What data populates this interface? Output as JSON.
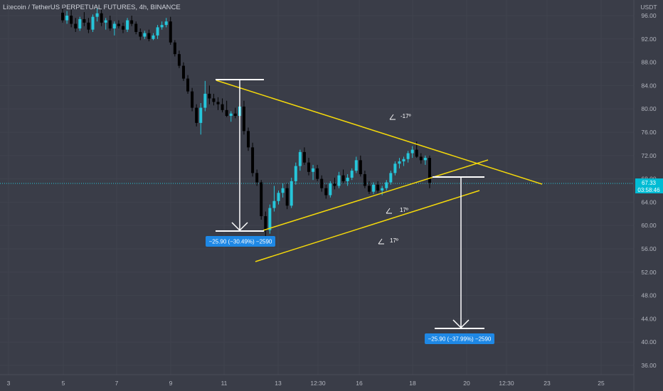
{
  "header": {
    "title": "Litecoin / TetherUS PERPETUAL FUTURES, 4h, BINANCE"
  },
  "price_axis": {
    "unit": "USDT",
    "ticks": [
      "96.00",
      "92.00",
      "88.00",
      "84.00",
      "80.00",
      "76.00",
      "72.00",
      "68.00",
      "64.00",
      "60.00",
      "56.00",
      "52.00",
      "48.00",
      "44.00",
      "40.00",
      "36.00"
    ],
    "current_price": "67.33",
    "countdown": "03:58:46"
  },
  "time_axis": {
    "ticks": [
      "3",
      "5",
      "7",
      "9",
      "11",
      "13",
      "12:30",
      "16",
      "18",
      "20",
      "12:30",
      "23",
      "25"
    ]
  },
  "measurements": [
    {
      "text": "−25.90 (−30.49%) −2590"
    },
    {
      "text": "−25.90 (−37.99%) −2590"
    }
  ],
  "angle_labels": [
    "-17º",
    "17º",
    "17º"
  ],
  "colors": {
    "background": "#3a3d48",
    "up": "#26c6da",
    "down": "#000000",
    "trendline": "#f5d90a",
    "badge": "#1e88e5",
    "price_tag": "#00bcd4",
    "axis_text": "#b2b5be"
  },
  "chart_data": {
    "type": "candlestick",
    "y_range": [
      34,
      98
    ],
    "last_price": 67.33,
    "candles_ohlc": [
      [
        96.5,
        97.2,
        94.8,
        95.2
      ],
      [
        95.2,
        96.8,
        94.6,
        96.0
      ],
      [
        96.0,
        97.0,
        94.0,
        94.6
      ],
      [
        94.6,
        95.6,
        93.2,
        93.8
      ],
      [
        93.8,
        95.8,
        93.4,
        95.4
      ],
      [
        95.4,
        96.6,
        94.2,
        94.8
      ],
      [
        94.8,
        95.6,
        93.0,
        93.6
      ],
      [
        93.6,
        96.2,
        93.2,
        95.8
      ],
      [
        95.8,
        97.2,
        95.0,
        96.4
      ],
      [
        96.4,
        97.0,
        94.2,
        94.8
      ],
      [
        94.8,
        95.6,
        93.6,
        95.2
      ],
      [
        95.2,
        96.0,
        93.4,
        93.8
      ],
      [
        93.8,
        95.0,
        92.6,
        94.6
      ],
      [
        94.6,
        95.2,
        93.8,
        94.2
      ],
      [
        94.2,
        94.8,
        93.0,
        93.6
      ],
      [
        93.6,
        95.6,
        93.2,
        95.2
      ],
      [
        95.2,
        96.0,
        94.2,
        94.6
      ],
      [
        94.6,
        95.0,
        92.8,
        93.2
      ],
      [
        93.2,
        93.8,
        91.8,
        92.4
      ],
      [
        92.4,
        93.4,
        92.0,
        93.0
      ],
      [
        93.0,
        93.6,
        91.6,
        92.0
      ],
      [
        92.0,
        93.0,
        91.8,
        92.6
      ],
      [
        92.6,
        94.4,
        92.0,
        94.0
      ],
      [
        94.0,
        95.0,
        93.6,
        94.4
      ],
      [
        94.4,
        95.6,
        94.0,
        95.0
      ],
      [
        95.0,
        95.8,
        91.0,
        91.4
      ],
      [
        91.4,
        91.8,
        89.0,
        89.4
      ],
      [
        89.4,
        90.0,
        87.0,
        87.4
      ],
      [
        87.4,
        88.0,
        84.8,
        85.2
      ],
      [
        85.2,
        85.8,
        82.6,
        83.0
      ],
      [
        83.0,
        83.6,
        79.6,
        80.2
      ],
      [
        80.2,
        80.8,
        77.0,
        77.6
      ],
      [
        77.6,
        81.0,
        75.6,
        80.2
      ],
      [
        80.2,
        84.8,
        79.6,
        82.6
      ],
      [
        82.6,
        84.0,
        80.8,
        81.8
      ],
      [
        81.8,
        82.6,
        80.6,
        81.2
      ],
      [
        81.2,
        82.0,
        79.8,
        80.8
      ],
      [
        80.8,
        81.8,
        79.4,
        79.8
      ],
      [
        79.8,
        81.4,
        78.6,
        78.8
      ],
      [
        78.8,
        79.6,
        77.8,
        79.2
      ],
      [
        79.2,
        80.2,
        78.4,
        78.8
      ],
      [
        78.8,
        81.0,
        78.2,
        80.4
      ],
      [
        80.4,
        81.4,
        75.6,
        76.2
      ],
      [
        76.2,
        76.8,
        72.8,
        73.4
      ],
      [
        73.4,
        74.2,
        68.4,
        69.0
      ],
      [
        69.0,
        69.6,
        66.8,
        67.4
      ],
      [
        67.4,
        67.8,
        61.0,
        61.6
      ],
      [
        61.6,
        62.4,
        57.4,
        59.2
      ],
      [
        59.2,
        63.6,
        58.6,
        63.0
      ],
      [
        63.0,
        66.8,
        62.4,
        64.2
      ],
      [
        64.2,
        66.0,
        63.6,
        65.6
      ],
      [
        65.6,
        67.2,
        64.8,
        66.4
      ],
      [
        66.4,
        67.2,
        62.8,
        63.4
      ],
      [
        63.4,
        68.2,
        63.0,
        67.6
      ],
      [
        67.6,
        70.8,
        67.0,
        70.2
      ],
      [
        70.2,
        73.0,
        69.4,
        72.6
      ],
      [
        72.6,
        73.4,
        70.4,
        70.8
      ],
      [
        70.8,
        71.6,
        68.6,
        69.2
      ],
      [
        69.2,
        70.4,
        67.8,
        69.8
      ],
      [
        69.8,
        70.4,
        67.6,
        68.0
      ],
      [
        68.0,
        68.6,
        65.8,
        66.4
      ],
      [
        66.4,
        67.0,
        64.6,
        65.2
      ],
      [
        65.2,
        67.6,
        64.8,
        67.2
      ],
      [
        67.2,
        68.2,
        66.2,
        66.8
      ],
      [
        66.8,
        69.2,
        66.4,
        68.6
      ],
      [
        68.6,
        69.6,
        67.2,
        67.6
      ],
      [
        67.6,
        68.8,
        66.8,
        68.2
      ],
      [
        68.2,
        69.8,
        67.8,
        69.4
      ],
      [
        69.4,
        71.8,
        69.0,
        71.2
      ],
      [
        71.2,
        72.0,
        68.4,
        68.8
      ],
      [
        68.8,
        69.4,
        66.4,
        66.8
      ],
      [
        66.8,
        67.6,
        65.4,
        65.8
      ],
      [
        65.8,
        67.4,
        65.4,
        67.0
      ],
      [
        67.0,
        67.6,
        65.6,
        66.0
      ],
      [
        66.0,
        66.8,
        65.2,
        66.4
      ],
      [
        66.4,
        67.8,
        66.0,
        67.4
      ],
      [
        67.4,
        69.4,
        67.0,
        69.0
      ],
      [
        69.0,
        71.0,
        68.6,
        70.6
      ],
      [
        70.6,
        71.6,
        69.8,
        71.0
      ],
      [
        71.0,
        71.8,
        70.2,
        71.4
      ],
      [
        71.4,
        72.8,
        70.8,
        72.4
      ],
      [
        72.4,
        73.6,
        71.6,
        73.0
      ],
      [
        73.0,
        74.4,
        71.6,
        71.8
      ],
      [
        71.8,
        72.4,
        70.6,
        71.2
      ],
      [
        71.2,
        72.0,
        70.4,
        71.6
      ],
      [
        71.6,
        72.0,
        66.4,
        67.33
      ]
    ]
  }
}
